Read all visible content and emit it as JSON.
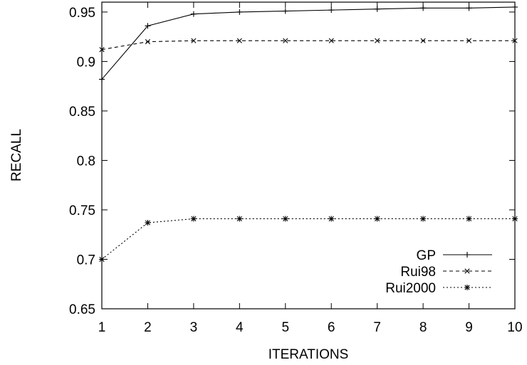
{
  "chart_data": {
    "type": "line",
    "xlabel": "ITERATIONS",
    "ylabel": "RECALL",
    "x": [
      1,
      2,
      3,
      4,
      5,
      6,
      7,
      8,
      9,
      10
    ],
    "xlim": [
      1,
      10
    ],
    "ylim": [
      0.65,
      0.96
    ],
    "xticks": [
      "1",
      "2",
      "3",
      "4",
      "5",
      "6",
      "7",
      "8",
      "9",
      "10"
    ],
    "yticks": [
      "0.65",
      "0.7",
      "0.75",
      "0.8",
      "0.85",
      "0.9",
      "0.95"
    ],
    "ytick_values": [
      0.65,
      0.7,
      0.75,
      0.8,
      0.85,
      0.9,
      0.95
    ],
    "grid": false,
    "legend": "bottom-right",
    "series": [
      {
        "name": "GP",
        "line_style": "solid",
        "marker": "plus",
        "values": [
          0.882,
          0.936,
          0.948,
          0.95,
          0.951,
          0.952,
          0.953,
          0.954,
          0.954,
          0.955
        ]
      },
      {
        "name": "Rui98",
        "line_style": "dashed",
        "marker": "cross",
        "values": [
          0.912,
          0.92,
          0.921,
          0.921,
          0.921,
          0.921,
          0.921,
          0.921,
          0.921,
          0.921
        ]
      },
      {
        "name": "Rui2000",
        "line_style": "dotted",
        "marker": "star",
        "values": [
          0.7,
          0.737,
          0.741,
          0.741,
          0.741,
          0.741,
          0.741,
          0.741,
          0.741,
          0.741
        ]
      }
    ]
  }
}
